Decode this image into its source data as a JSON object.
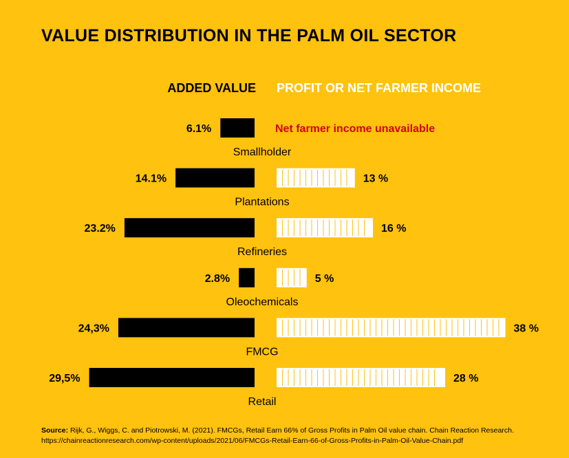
{
  "chart_data": {
    "type": "bar",
    "title": "VALUE DISTRIBUTION IN THE PALM OIL SECTOR",
    "left_header": "ADDED VALUE",
    "right_header": "PROFIT OR NET FARMER INCOME",
    "categories": [
      "Smallholder",
      "Plantations",
      "Refineries",
      "Oleochemicals",
      "FMCG",
      "Retail"
    ],
    "series": [
      {
        "name": "ADDED VALUE",
        "values": [
          6.1,
          14.1,
          23.2,
          2.8,
          24.3,
          29.5
        ],
        "labels": [
          "6.1%",
          "14.1%",
          "23.2%",
          "2.8%",
          "24,3%",
          "29,5%"
        ]
      },
      {
        "name": "PROFIT OR NET FARMER INCOME",
        "values": [
          null,
          13,
          16,
          5,
          38,
          28
        ],
        "labels": [
          "Net farmer income unavailable",
          "13 %",
          "16 %",
          "5 %",
          "38 %",
          "28 %"
        ]
      }
    ],
    "unavailable_note": "Net farmer income unavailable"
  },
  "colors": {
    "background": "#FFC20E",
    "added_value_bar": "#000000",
    "profit_bar": "#FFFFFF",
    "unavailable_text": "#D0021B"
  },
  "source": {
    "label": "Source:",
    "text": "Rijk, G., Wiggs, C. and Piotrowski, M. (2021). FMCGs, Retail Earn 66% of Gross Profits in Palm Oil value chain. Chain Reaction Research.",
    "url": "https://chainreactionresearch.com/wp-content/uploads/2021/06/FMCGs-Retail-Earn-66-of-Gross-Profits-in-Palm-Oil-Value-Chain.pdf"
  }
}
